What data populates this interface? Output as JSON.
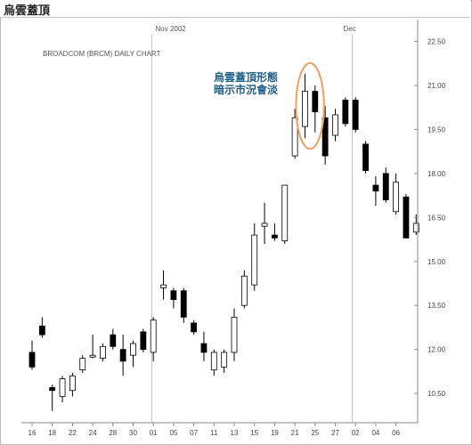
{
  "window_title": "烏雲蓋頂",
  "chart_data": {
    "type": "candlestick",
    "title": "BROADCOM (BRCM) DAILY CHART",
    "annotation": "烏雲蓋頂形態\n暗示市況會淡",
    "month_labels": [
      {
        "label": "Nov 2002",
        "index": 7
      },
      {
        "label": "Dec",
        "index": 16
      }
    ],
    "x_tick_labels": [
      "16",
      "18",
      "22",
      "24",
      "28",
      "30",
      "01",
      "05",
      "07",
      "11",
      "13",
      "15",
      "19",
      "21",
      "25",
      "27",
      "02",
      "04",
      "06"
    ],
    "ylim": [
      9.5,
      22.7
    ],
    "y_ticks": [
      "10.50",
      "12.00",
      "13.50",
      "15.00",
      "16.50",
      "18.00",
      "19.50",
      "21.00",
      "22.50"
    ],
    "grid": false,
    "candles": [
      {
        "o": 11.9,
        "h": 12.3,
        "l": 11.3,
        "c": 11.4
      },
      {
        "o": 12.8,
        "h": 13.1,
        "l": 12.4,
        "c": 12.5
      },
      {
        "o": 10.7,
        "h": 10.8,
        "l": 9.9,
        "c": 10.6
      },
      {
        "o": 10.4,
        "h": 11.1,
        "l": 10.2,
        "c": 11.0
      },
      {
        "o": 10.6,
        "h": 11.2,
        "l": 10.4,
        "c": 11.1
      },
      {
        "o": 11.3,
        "h": 11.8,
        "l": 11.2,
        "c": 11.7
      },
      {
        "o": 11.8,
        "h": 12.5,
        "l": 11.7,
        "c": 11.8
      },
      {
        "o": 11.7,
        "h": 12.2,
        "l": 11.6,
        "c": 12.1
      },
      {
        "o": 12.5,
        "h": 12.7,
        "l": 12.0,
        "c": 12.1
      },
      {
        "o": 12.0,
        "h": 12.5,
        "l": 11.1,
        "c": 11.6
      },
      {
        "o": 11.8,
        "h": 12.3,
        "l": 11.4,
        "c": 12.2
      },
      {
        "o": 12.6,
        "h": 12.7,
        "l": 11.9,
        "c": 12.0
      },
      {
        "o": 11.9,
        "h": 13.1,
        "l": 11.6,
        "c": 13.0
      },
      {
        "o": 14.1,
        "h": 14.7,
        "l": 13.7,
        "c": 14.2
      },
      {
        "o": 14.0,
        "h": 14.1,
        "l": 13.4,
        "c": 13.7
      },
      {
        "o": 14.0,
        "h": 14.1,
        "l": 12.9,
        "c": 13.1
      },
      {
        "o": 12.9,
        "h": 13.0,
        "l": 12.5,
        "c": 12.6
      },
      {
        "o": 12.2,
        "h": 12.6,
        "l": 11.6,
        "c": 11.9
      },
      {
        "o": 11.3,
        "h": 12.0,
        "l": 11.1,
        "c": 11.9
      },
      {
        "o": 11.4,
        "h": 12.0,
        "l": 11.2,
        "c": 11.9
      },
      {
        "o": 11.9,
        "h": 13.4,
        "l": 11.6,
        "c": 13.1
      },
      {
        "o": 13.5,
        "h": 14.7,
        "l": 13.4,
        "c": 14.5
      },
      {
        "o": 14.2,
        "h": 16.3,
        "l": 14.0,
        "c": 15.9
      },
      {
        "o": 16.2,
        "h": 17.0,
        "l": 15.6,
        "c": 16.3
      },
      {
        "o": 15.9,
        "h": 16.3,
        "l": 15.7,
        "c": 15.8
      },
      {
        "o": 15.7,
        "h": 17.6,
        "l": 15.6,
        "c": 17.6
      },
      {
        "o": 18.6,
        "h": 20.2,
        "l": 18.5,
        "c": 19.9
      },
      {
        "o": 19.6,
        "h": 21.4,
        "l": 19.2,
        "c": 20.8
      },
      {
        "o": 20.8,
        "h": 21.0,
        "l": 19.4,
        "c": 20.1
      },
      {
        "o": 19.9,
        "h": 20.3,
        "l": 18.3,
        "c": 18.6
      },
      {
        "o": 19.3,
        "h": 20.2,
        "l": 19.1,
        "c": 20.0
      },
      {
        "o": 20.5,
        "h": 20.6,
        "l": 19.6,
        "c": 19.7
      },
      {
        "o": 20.5,
        "h": 20.6,
        "l": 19.4,
        "c": 19.5
      },
      {
        "o": 19.0,
        "h": 19.1,
        "l": 18.0,
        "c": 18.1
      },
      {
        "o": 17.6,
        "h": 17.9,
        "l": 16.9,
        "c": 17.4
      },
      {
        "o": 18.0,
        "h": 18.2,
        "l": 17.0,
        "c": 17.1
      },
      {
        "o": 16.7,
        "h": 18.0,
        "l": 16.6,
        "c": 17.7
      },
      {
        "o": 17.2,
        "h": 17.3,
        "l": 15.8,
        "c": 15.8
      },
      {
        "o": 16.0,
        "h": 16.6,
        "l": 15.9,
        "c": 16.3
      }
    ],
    "highlight_candles": [
      27,
      28
    ],
    "colors": {
      "up_body": "#ffffff",
      "down_body": "#000000",
      "wick": "#000000",
      "annotation": "#1f5f8b",
      "highlight": "#f0a060"
    }
  }
}
